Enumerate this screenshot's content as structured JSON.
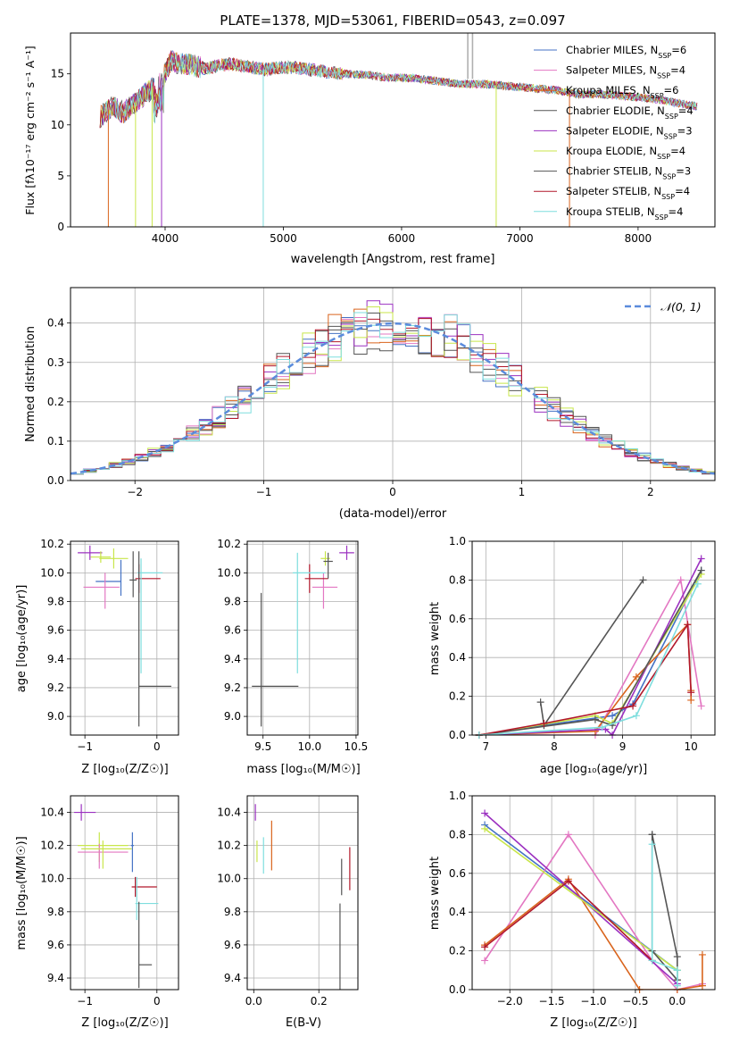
{
  "figure": {
    "title": "PLATE=1378, MJD=53061, FIBERID=0543, z=0.097"
  },
  "model_colors": [
    "#4472c4",
    "#e377c2",
    "#d9641c",
    "#555555",
    "#9b30c0",
    "#c8e64a",
    "#555555",
    "#b2182b",
    "#7fdede"
  ],
  "chart_data": [
    {
      "id": "spectrum",
      "type": "line",
      "xlabel": "wavelength [Angstrom, rest frame]",
      "ylabel": "Flux [fλ10⁻¹⁷ erg cm⁻² s⁻¹ A⁻¹]",
      "xlim": [
        3200,
        8650
      ],
      "ylim": [
        0,
        19
      ],
      "xticks": [
        4000,
        5000,
        6000,
        7000,
        8000
      ],
      "yticks": [
        0,
        5,
        10,
        15
      ],
      "grid": false,
      "legend_position": "top-right",
      "series": [
        {
          "name": "Chabrier MILES, N_SSP=6"
        },
        {
          "name": "Salpeter MILES, N_SSP=4"
        },
        {
          "name": "Kroupa MILES, N_SSP=6"
        },
        {
          "name": "Chabrier ELODIE, N_SSP=4"
        },
        {
          "name": "Salpeter ELODIE, N_SSP=3"
        },
        {
          "name": "Kroupa ELODIE, N_SSP=4"
        },
        {
          "name": "Chabrier STELIB, N_SSP=3"
        },
        {
          "name": "Salpeter STELIB, N_SSP=4"
        },
        {
          "name": "Kroupa STELIB, N_SSP=4"
        }
      ],
      "x": [
        3450,
        3550,
        3650,
        3750,
        3850,
        3950,
        4050,
        4150,
        4250,
        4350,
        4450,
        4550,
        4650,
        4750,
        4850,
        4950,
        5100,
        5300,
        5500,
        5700,
        5900,
        6100,
        6300,
        6500,
        6700,
        6900,
        7100,
        7300,
        7500,
        7700,
        7900,
        8100,
        8300,
        8500
      ],
      "y": [
        10.8,
        11.8,
        11.2,
        12.2,
        13.2,
        14.2,
        16.2,
        16.0,
        15.8,
        15.5,
        15.8,
        16.0,
        15.8,
        15.6,
        15.4,
        15.6,
        15.6,
        15.3,
        15.0,
        14.9,
        14.6,
        14.6,
        14.3,
        14.0,
        14.0,
        13.8,
        13.6,
        13.4,
        13.0,
        13.0,
        12.8,
        12.6,
        12.2,
        11.8
      ]
    },
    {
      "id": "residual_hist",
      "type": "line",
      "xlabel": "(data-model)/error",
      "ylabel": "Normed distribution",
      "xlim": [
        -2.5,
        2.5
      ],
      "ylim": [
        0,
        0.49
      ],
      "xticks": [
        -2,
        -1,
        0,
        1,
        2
      ],
      "yticks": [
        0.0,
        0.1,
        0.2,
        0.3,
        0.4
      ],
      "grid": true,
      "legend_position": "top-right",
      "reference": {
        "name": "𝒩(0, 1)"
      }
    },
    {
      "id": "age_vs_Z",
      "type": "scatter",
      "xlabel": "Z [log₁₀(Z/Z☉)]",
      "ylabel": "age  [log₁₀(age/yr)]",
      "xlim": [
        -1.2,
        0.3
      ],
      "ylim": [
        8.87,
        10.22
      ],
      "xticks": [
        -1,
        0
      ],
      "yticks": [
        9.0,
        9.2,
        9.4,
        9.6,
        9.8,
        10.0,
        10.2
      ],
      "grid": true,
      "points": [
        {
          "x": -0.93,
          "y": 10.14,
          "xerr": [
            0.17,
            0.17
          ],
          "yerr": [
            0.05,
            0.05
          ]
        },
        {
          "x": -0.78,
          "y": 10.11,
          "xerr": [
            0.14,
            0.14
          ],
          "yerr": [
            0.04,
            0.04
          ]
        },
        {
          "x": -0.5,
          "y": 9.94,
          "xerr": [
            0.35,
            0.0
          ],
          "yerr": [
            0.1,
            0.15
          ]
        },
        {
          "x": -0.72,
          "y": 9.9,
          "xerr": [
            0.3,
            0.2
          ],
          "yerr": [
            0.15,
            0.1
          ]
        },
        {
          "x": -0.6,
          "y": 10.1,
          "xerr": [
            0.2,
            0.2
          ],
          "yerr": [
            0.07,
            0.07
          ]
        },
        {
          "x": -0.25,
          "y": 9.96,
          "xerr": [
            0.05,
            0.3
          ],
          "yerr": [
            0.1,
            0.1
          ]
        },
        {
          "x": -0.22,
          "y": 10.0,
          "xerr": [
            0.05,
            0.3
          ],
          "yerr": [
            0.7,
            0.1
          ]
        },
        {
          "x": -0.25,
          "y": 9.21,
          "xerr": [
            0.0,
            0.45
          ],
          "yerr": [
            0.28,
            0.94
          ]
        },
        {
          "x": -0.33,
          "y": 9.95,
          "xerr": [
            0.05,
            0.05
          ],
          "yerr": [
            0.12,
            0.2
          ]
        }
      ]
    },
    {
      "id": "age_vs_mass",
      "type": "scatter",
      "xlabel": "mass [log₁₀(M/M☉)]",
      "ylabel": "",
      "xlim": [
        9.33,
        10.52
      ],
      "ylim": [
        8.87,
        10.22
      ],
      "xticks": [
        9.5,
        10.0,
        10.5
      ],
      "yticks": [
        9.0,
        9.2,
        9.4,
        9.6,
        9.8,
        10.0,
        10.2
      ],
      "grid": true,
      "points": [
        {
          "x": 10.4,
          "y": 10.14,
          "xerr": [
            0.08,
            0.08
          ],
          "yerr": [
            0.05,
            0.05
          ]
        },
        {
          "x": 10.17,
          "y": 10.1,
          "xerr": [
            0.05,
            0.05
          ],
          "yerr": [
            0.05,
            0.05
          ]
        },
        {
          "x": 10.15,
          "y": 9.9,
          "xerr": [
            0.12,
            0.15
          ],
          "yerr": [
            0.15,
            0.1
          ]
        },
        {
          "x": 10.0,
          "y": 9.96,
          "xerr": [
            0.05,
            0.2
          ],
          "yerr": [
            0.1,
            0.1
          ]
        },
        {
          "x": 9.87,
          "y": 10.0,
          "xerr": [
            0.05,
            0.3
          ],
          "yerr": [
            0.7,
            0.14
          ]
        },
        {
          "x": 9.48,
          "y": 9.21,
          "xerr": [
            0.1,
            0.4
          ],
          "yerr": [
            0.28,
            0.65
          ]
        },
        {
          "x": 10.2,
          "y": 10.08,
          "xerr": [
            0.05,
            0.05
          ],
          "yerr": [
            0.12,
            0.06
          ]
        }
      ]
    },
    {
      "id": "massweight_vs_age",
      "type": "line",
      "xlabel": "age  [log₁₀(age/yr)]",
      "ylabel": "mass weight",
      "xlim": [
        6.8,
        10.35
      ],
      "ylim": [
        0,
        1.0
      ],
      "xticks": [
        7,
        8,
        9,
        10
      ],
      "yticks": [
        0.0,
        0.2,
        0.4,
        0.6,
        0.8,
        1.0
      ],
      "grid": true,
      "series": [
        {
          "x": [
            6.9,
            7.85,
            8.85,
            9.15,
            10.15
          ],
          "y": [
            0.0,
            0.05,
            0.1,
            0.16,
            0.85
          ]
        },
        {
          "x": [
            6.9,
            8.6,
            9.85,
            10.15
          ],
          "y": [
            0.0,
            0.0,
            0.8,
            0.15
          ]
        },
        {
          "x": [
            6.9,
            8.6,
            9.2,
            9.95,
            10.0,
            10.0
          ],
          "y": [
            0.0,
            0.02,
            0.3,
            0.57,
            0.23,
            0.18
          ]
        },
        {
          "x": [
            7.8,
            7.85,
            9.3
          ],
          "y": [
            0.17,
            0.05,
            0.8
          ]
        },
        {
          "x": [
            6.9,
            8.75,
            8.85,
            10.15
          ],
          "y": [
            0.0,
            0.03,
            0.0,
            0.91
          ]
        },
        {
          "x": [
            6.9,
            8.6,
            8.85,
            10.15
          ],
          "y": [
            0.0,
            0.1,
            0.06,
            0.83
          ]
        },
        {
          "x": [
            6.9,
            8.6,
            8.85,
            10.15
          ],
          "y": [
            0.0,
            0.08,
            0.05,
            0.85
          ]
        },
        {
          "x": [
            6.9,
            7.85,
            9.15,
            9.95,
            10.0
          ],
          "y": [
            0.0,
            0.06,
            0.15,
            0.57,
            0.22
          ]
        },
        {
          "x": [
            6.9,
            8.7,
            9.2,
            10.1
          ],
          "y": [
            0.0,
            0.04,
            0.1,
            0.78
          ]
        }
      ]
    },
    {
      "id": "mass_vs_Z",
      "type": "scatter",
      "xlabel": "Z [log₁₀(Z/Z☉)]",
      "ylabel": "mass [log₁₀(M/M☉)]",
      "xlim": [
        -1.2,
        0.3
      ],
      "ylim": [
        9.33,
        10.5
      ],
      "xticks": [
        -1,
        0
      ],
      "yticks": [
        9.4,
        9.6,
        9.8,
        10.0,
        10.2,
        10.4
      ],
      "grid": true,
      "points": [
        {
          "x": -1.05,
          "y": 10.4,
          "xerr": [
            0.1,
            0.2
          ],
          "yerr": [
            0.05,
            0.05
          ]
        },
        {
          "x": -0.8,
          "y": 10.2,
          "xerr": [
            0.3,
            0.4
          ],
          "yerr": [
            0.1,
            0.08
          ]
        },
        {
          "x": -0.8,
          "y": 10.16,
          "xerr": [
            0.3,
            0.4
          ],
          "yerr": [
            0.1,
            0.05
          ]
        },
        {
          "x": -0.75,
          "y": 10.18,
          "xerr": [
            0.3,
            0.4
          ],
          "yerr": [
            0.12,
            0.05
          ]
        },
        {
          "x": -0.3,
          "y": 9.95,
          "xerr": [
            0.05,
            0.3
          ],
          "yerr": [
            0.06,
            0.06
          ]
        },
        {
          "x": -0.28,
          "y": 9.85,
          "xerr": [
            0.02,
            0.3
          ],
          "yerr": [
            0.1,
            0.16
          ]
        },
        {
          "x": -0.25,
          "y": 9.48,
          "xerr": [
            0.0,
            0.18
          ],
          "yerr": [
            0.14,
            0.38
          ]
        },
        {
          "x": -0.34,
          "y": 10.2,
          "xerr": [
            0.02,
            0.02
          ],
          "yerr": [
            0.16,
            0.08
          ]
        }
      ]
    },
    {
      "id": "mass_vs_EBV",
      "type": "scatter",
      "xlabel": "E(B-V)",
      "ylabel": "",
      "xlim": [
        -0.02,
        0.32
      ],
      "ylim": [
        9.33,
        10.5
      ],
      "xticks": [
        0.0,
        0.2
      ],
      "yticks": [
        9.4,
        9.6,
        9.8,
        10.0,
        10.2,
        10.4
      ],
      "grid": true,
      "points": [
        {
          "x": 0.005,
          "y": 10.4,
          "yerr": [
            0.05,
            0.05
          ]
        },
        {
          "x": 0.01,
          "y": 10.15,
          "yerr": [
            0.05,
            0.08
          ]
        },
        {
          "x": 0.03,
          "y": 10.13,
          "yerr": [
            0.1,
            0.12
          ]
        },
        {
          "x": 0.055,
          "y": 10.2,
          "yerr": [
            0.15,
            0.15
          ]
        },
        {
          "x": 0.27,
          "y": 10.0,
          "yerr": [
            0.1,
            0.12
          ]
        },
        {
          "x": 0.295,
          "y": 10.06,
          "yerr": [
            0.13,
            0.13
          ]
        },
        {
          "x": 0.265,
          "y": 9.6,
          "yerr": [
            0.3,
            0.25
          ]
        }
      ]
    },
    {
      "id": "massweight_vs_Z",
      "type": "line",
      "xlabel": "Z [log₁₀(Z/Z☉)]",
      "ylabel": "mass weight",
      "xlim": [
        -2.45,
        0.45
      ],
      "ylim": [
        0,
        1.0
      ],
      "xticks": [
        -2.0,
        -1.5,
        -1.0,
        -0.5,
        0.0
      ],
      "yticks": [
        0.0,
        0.2,
        0.4,
        0.6,
        0.8,
        1.0
      ],
      "grid": true,
      "series": [
        {
          "x": [
            -2.3,
            0.0,
            0.0
          ],
          "y": [
            0.85,
            0.1,
            0.05
          ]
        },
        {
          "x": [
            -2.3,
            -1.3,
            -0.3,
            0.0,
            0.3
          ],
          "y": [
            0.15,
            0.8,
            0.15,
            0.0,
            0.03
          ]
        },
        {
          "x": [
            -2.3,
            -1.3,
            -0.45,
            0.0,
            0.3,
            0.3
          ],
          "y": [
            0.23,
            0.57,
            0.0,
            0.0,
            0.02,
            0.18
          ]
        },
        {
          "x": [
            -0.3,
            0.0,
            0.0
          ],
          "y": [
            0.8,
            0.17,
            0.05
          ]
        },
        {
          "x": [
            -2.3,
            0.0
          ],
          "y": [
            0.91,
            0.03
          ]
        },
        {
          "x": [
            -2.3,
            0.0,
            0.0
          ],
          "y": [
            0.83,
            0.1,
            0.05
          ]
        },
        {
          "x": [
            -0.3,
            -0.3,
            0.0
          ],
          "y": [
            0.8,
            0.2,
            0.05
          ]
        },
        {
          "x": [
            -2.3,
            -1.3,
            -0.3
          ],
          "y": [
            0.22,
            0.56,
            0.15
          ]
        },
        {
          "x": [
            -0.3,
            -0.3,
            0.0,
            0.0
          ],
          "y": [
            0.75,
            0.15,
            0.1,
            0.02
          ]
        }
      ]
    }
  ]
}
